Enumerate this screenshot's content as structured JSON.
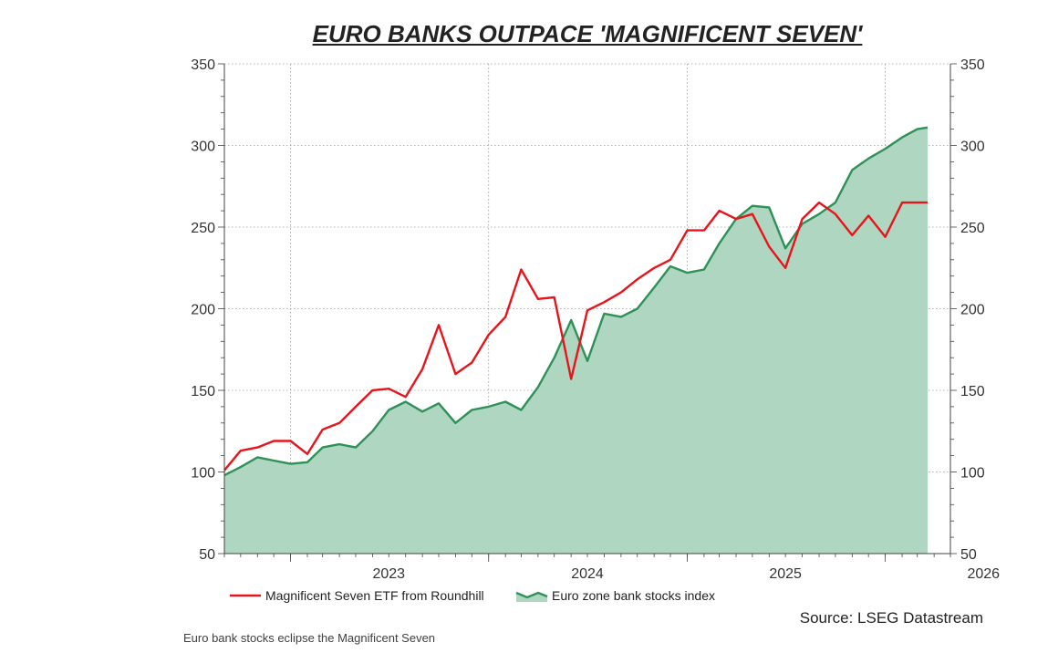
{
  "chart_data": {
    "type": "area",
    "title": "EURO BANKS OUTPACE 'MAGNIFICENT SEVEN'",
    "xlabel": "",
    "ylabel": "",
    "ylim": [
      50,
      350
    ],
    "yticks": [
      50,
      100,
      150,
      200,
      250,
      300,
      350
    ],
    "xlim": [
      "2022-09-01",
      "2026-05-01"
    ],
    "xticks": [
      "2023",
      "2024",
      "2025",
      "2026"
    ],
    "grid": true,
    "legend_position": "bottom",
    "series": [
      {
        "name": "Magnificent Seven ETF from Roundhill",
        "style": "line",
        "color": "#e8141b",
        "x": [
          "2022-09-01",
          "2022-10-01",
          "2022-11-01",
          "2022-12-01",
          "2023-01-01",
          "2023-02-01",
          "2023-03-01",
          "2023-04-01",
          "2023-05-01",
          "2023-06-01",
          "2023-07-01",
          "2023-08-01",
          "2023-09-01",
          "2023-10-01",
          "2023-11-01",
          "2023-12-01",
          "2024-01-01",
          "2024-02-01",
          "2024-03-01",
          "2024-04-01",
          "2024-05-01",
          "2024-06-01",
          "2024-07-01",
          "2024-08-01",
          "2024-09-01",
          "2024-10-01",
          "2024-11-01",
          "2024-12-01",
          "2025-01-01",
          "2025-02-01",
          "2025-03-01",
          "2025-04-01",
          "2025-05-01",
          "2025-06-01",
          "2025-07-01",
          "2025-08-01",
          "2025-09-01",
          "2025-10-01",
          "2025-11-01",
          "2025-12-01",
          "2026-01-01",
          "2026-02-01",
          "2026-03-01",
          "2026-03-20"
        ],
        "values": [
          101,
          113,
          115,
          119,
          119,
          111,
          126,
          130,
          140,
          150,
          151,
          146,
          163,
          190,
          160,
          167,
          184,
          195,
          224,
          206,
          207,
          157,
          199,
          204,
          210,
          218,
          225,
          230,
          248,
          248,
          260,
          255,
          258,
          238,
          225,
          255,
          265,
          258,
          245,
          257,
          244,
          265,
          265,
          265
        ]
      },
      {
        "name": "Euro zone bank stocks index",
        "style": "area",
        "color": "#2e9157",
        "fill": "#aed6c1",
        "x": [
          "2022-09-01",
          "2022-10-01",
          "2022-11-01",
          "2022-12-01",
          "2023-01-01",
          "2023-02-01",
          "2023-03-01",
          "2023-04-01",
          "2023-05-01",
          "2023-06-01",
          "2023-07-01",
          "2023-08-01",
          "2023-09-01",
          "2023-10-01",
          "2023-11-01",
          "2023-12-01",
          "2024-01-01",
          "2024-02-01",
          "2024-03-01",
          "2024-04-01",
          "2024-05-01",
          "2024-06-01",
          "2024-07-01",
          "2024-08-01",
          "2024-09-01",
          "2024-10-01",
          "2024-11-01",
          "2024-12-01",
          "2025-01-01",
          "2025-02-01",
          "2025-03-01",
          "2025-04-01",
          "2025-05-01",
          "2025-06-01",
          "2025-07-01",
          "2025-08-01",
          "2025-09-01",
          "2025-10-01",
          "2025-11-01",
          "2025-12-01",
          "2026-01-01",
          "2026-02-01",
          "2026-03-01",
          "2026-03-20"
        ],
        "values": [
          98,
          103,
          109,
          107,
          105,
          106,
          115,
          117,
          115,
          125,
          138,
          143,
          137,
          142,
          130,
          138,
          140,
          143,
          138,
          152,
          170,
          193,
          168,
          197,
          195,
          200,
          213,
          226,
          222,
          224,
          240,
          255,
          263,
          262,
          237,
          252,
          258,
          265,
          285,
          292,
          298,
          305,
          310,
          311
        ]
      }
    ],
    "source": "Source: LSEG Datastream",
    "caption": "Euro bank stocks eclipse the Magnificent Seven"
  }
}
